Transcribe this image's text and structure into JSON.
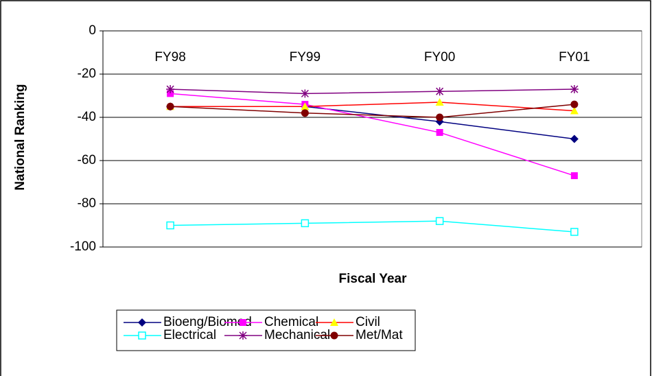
{
  "chart_data": {
    "type": "line",
    "x_label": "Fiscal Year",
    "y_label": "National Ranking",
    "categories": [
      "FY98",
      "FY99",
      "FY00",
      "FY01"
    ],
    "ylim": [
      -100,
      0
    ],
    "yticks": [
      -100,
      -80,
      -60,
      -40,
      -20,
      0
    ],
    "grid": true,
    "legend": "bottom",
    "series": [
      {
        "name": "Bioeng/Biomed",
        "color": "#000080",
        "marker": "diamond",
        "marker_color": "#000080",
        "values": [
          -35,
          -35,
          -42,
          -50
        ]
      },
      {
        "name": "Chemical",
        "color": "#ff00ff",
        "marker": "square",
        "marker_color": "#ff00ff",
        "values": [
          -29,
          -34,
          -47,
          -67
        ]
      },
      {
        "name": "Civil",
        "color": "#ff0000",
        "marker": "triangle",
        "marker_color": "#ffff00",
        "values": [
          -35,
          -35,
          -33,
          -37
        ]
      },
      {
        "name": "Electrical",
        "color": "#00ffff",
        "marker": "open-square",
        "marker_color": "#00ffff",
        "values": [
          -90,
          -89,
          -88,
          -93
        ]
      },
      {
        "name": "Mechanical",
        "color": "#800080",
        "marker": "asterisk",
        "marker_color": "#800080",
        "values": [
          -27,
          -29,
          -28,
          -27
        ]
      },
      {
        "name": "Met/Mat",
        "color": "#800000",
        "marker": "circle",
        "marker_color": "#800000",
        "values": [
          -35,
          -38,
          -40,
          -34
        ]
      }
    ]
  }
}
